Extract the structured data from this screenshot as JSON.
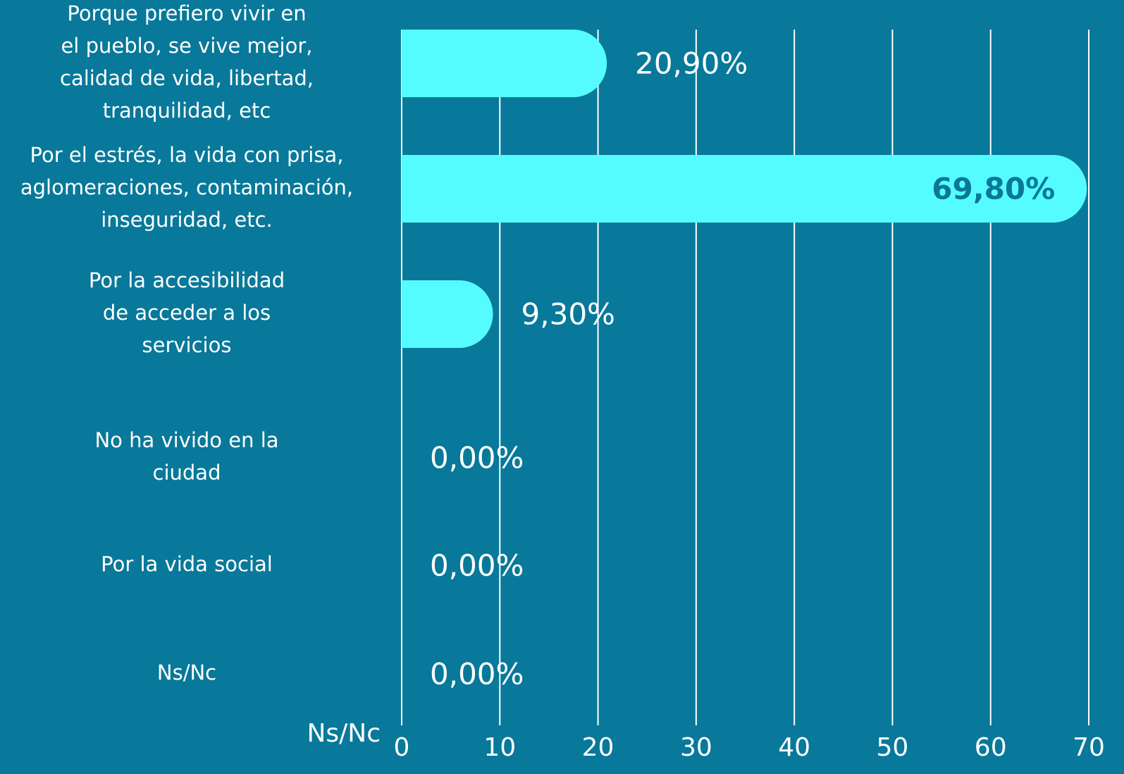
{
  "chart_data": {
    "type": "barh",
    "categories": [
      "Porque prefiero vivir en\nel pueblo, se vive mejor,\ncalidad de vida, libertad,\ntranquilidad, etc",
      "Por el estrés, la vida con prisa,\naglomeraciones, contaminación,\ninseguridad, etc.",
      "Por la accesibilidad\nde acceder a los\nservicios",
      "No ha vivido en la\nciudad",
      "Por la vida social",
      "Ns/Nc"
    ],
    "values": [
      20.9,
      69.8,
      9.3,
      0,
      0,
      0
    ],
    "value_labels": [
      "20,90%",
      "69,80%",
      "9,30%",
      "0,00%",
      "0,00%",
      "0,00%"
    ],
    "axis_label": "Ns/Nc",
    "color": "#55fcff",
    "xlim": [
      0,
      70
    ],
    "xticks": [
      0,
      10,
      20,
      30,
      40,
      50,
      60,
      70
    ],
    "grid": true
  }
}
